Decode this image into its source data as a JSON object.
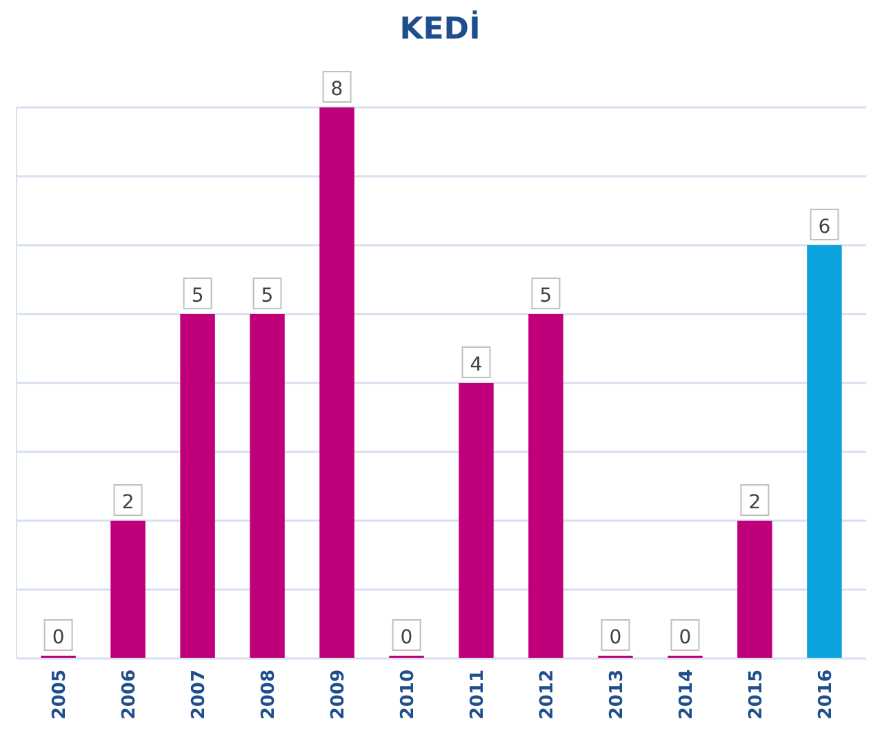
{
  "chart_data": {
    "type": "bar",
    "title": "KEDİ",
    "categories": [
      "2005",
      "2006",
      "2007",
      "2008",
      "2009",
      "2010",
      "2011",
      "2012",
      "2013",
      "2014",
      "2015",
      "2016"
    ],
    "values": [
      0,
      2,
      5,
      5,
      8,
      0,
      4,
      5,
      0,
      0,
      2,
      6
    ],
    "colors": [
      "#c0007a",
      "#c0007a",
      "#c0007a",
      "#c0007a",
      "#c0007a",
      "#c0007a",
      "#c0007a",
      "#c0007a",
      "#c0007a",
      "#c0007a",
      "#c0007a",
      "#0ba3de"
    ],
    "ylim": [
      0,
      8
    ],
    "yticks": [
      {
        "value": 0,
        "label": null
      },
      {
        "value": 1,
        "label": null
      },
      {
        "value": 2,
        "label": null
      },
      {
        "value": 3,
        "label": null
      },
      {
        "value": 4,
        "label": null
      },
      {
        "value": 5,
        "label": null
      },
      {
        "value": 6,
        "label": null
      },
      {
        "value": 7,
        "label": null
      },
      {
        "value": 8,
        "label": null
      }
    ],
    "tick_labels": "x",
    "grid": "y",
    "data_labels": true
  }
}
